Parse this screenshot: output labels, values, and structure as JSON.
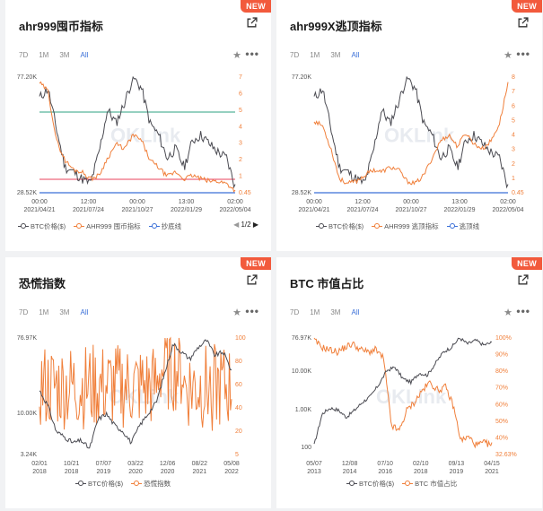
{
  "colors": {
    "btc": "#4b4b52",
    "orange": "#f07f3a",
    "blue": "#3a6fd8",
    "green": "#57b59a",
    "red": "#e8405b",
    "badge": "#f25a3c"
  },
  "watermark": "OKLink",
  "cards": [
    {
      "badge": "NEW",
      "title": "ahr999囤币指标",
      "ranges": [
        "7D",
        "1M",
        "3M",
        "All"
      ],
      "active_range": "All",
      "y_left": [
        "77.20K",
        "28.52K"
      ],
      "y_right": [
        "7",
        "6",
        "5",
        "4",
        "3",
        "2",
        "1",
        "0.45"
      ],
      "x_ticks": [
        [
          "00:00",
          "2021/04/21"
        ],
        [
          "12:00",
          "2021/07/24"
        ],
        [
          "00:00",
          "2021/10/27"
        ],
        [
          "13:00",
          "2022/01/29"
        ],
        [
          "02:00",
          "2022/05/04"
        ]
      ],
      "legend": [
        {
          "label": "BTC价格($)",
          "color": "btc"
        },
        {
          "label": "AHR999 囤币指标",
          "color": "orange"
        },
        {
          "label": "抄底线",
          "color": "blue"
        }
      ],
      "pager": "1/2"
    },
    {
      "badge": "NEW",
      "title": "ahr999X逃顶指标",
      "ranges": [
        "7D",
        "1M",
        "3M",
        "All"
      ],
      "active_range": "All",
      "y_left": [
        "77.20K",
        "28.52K"
      ],
      "y_right": [
        "8",
        "7",
        "6",
        "5",
        "4",
        "3",
        "2",
        "1",
        "0.45"
      ],
      "x_ticks": [
        [
          "00:00",
          "2021/04/21"
        ],
        [
          "12:00",
          "2021/07/24"
        ],
        [
          "00:00",
          "2021/10/27"
        ],
        [
          "13:00",
          "2022/01/29"
        ],
        [
          "02:00",
          "2022/05/04"
        ]
      ],
      "legend": [
        {
          "label": "BTC价格($)",
          "color": "btc"
        },
        {
          "label": "AHR999 逃顶指标",
          "color": "orange"
        },
        {
          "label": "逃顶线",
          "color": "blue"
        }
      ]
    },
    {
      "badge": "NEW",
      "title": "恐慌指数",
      "ranges": [
        "7D",
        "1M",
        "3M",
        "All"
      ],
      "active_range": "All",
      "y_left": [
        "76.97K",
        "10.00K",
        "3.24K"
      ],
      "y_right": [
        "100",
        "80",
        "60",
        "40",
        "20",
        "5"
      ],
      "x_ticks": [
        [
          "02/01",
          "2018"
        ],
        [
          "10/21",
          "2018"
        ],
        [
          "07/07",
          "2019"
        ],
        [
          "03/22",
          "2020"
        ],
        [
          "12/06",
          "2020"
        ],
        [
          "08/22",
          "2021"
        ],
        [
          "05/08",
          "2022"
        ]
      ],
      "legend": [
        {
          "label": "BTC价格($)",
          "color": "btc"
        },
        {
          "label": "恐慌指数",
          "color": "orange"
        }
      ]
    },
    {
      "badge": "NEW",
      "title": "BTC 市值占比",
      "ranges": [
        "7D",
        "1M",
        "3M",
        "All"
      ],
      "active_range": "All",
      "y_left": [
        "76.97K",
        "10.00K",
        "1.00K",
        "100"
      ],
      "y_right": [
        "100%",
        "90%",
        "80%",
        "70%",
        "60%",
        "50%",
        "40%",
        "32.63%"
      ],
      "x_ticks": [
        [
          "05/07",
          "2013"
        ],
        [
          "12/08",
          "2014"
        ],
        [
          "07/10",
          "2016"
        ],
        [
          "02/10",
          "2018"
        ],
        [
          "09/13",
          "2019"
        ],
        [
          "04/15",
          "2021"
        ]
      ],
      "legend": [
        {
          "label": "BTC价格($)",
          "color": "btc"
        },
        {
          "label": "BTC 市值占比",
          "color": "orange"
        }
      ]
    }
  ]
}
